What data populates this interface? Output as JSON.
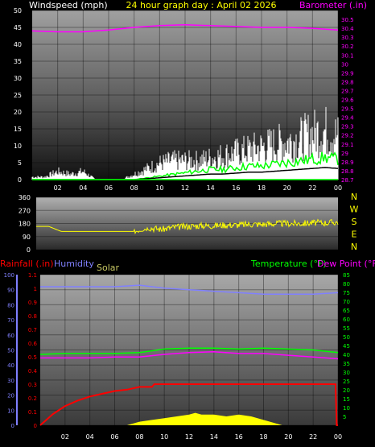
{
  "chart_data": [
    {
      "type": "line",
      "panel": "wind-barometer",
      "title": "24 hour graph day : April 02 2026",
      "left_axis_label": "Windspeed (mph)",
      "right_axis_label": "Barometer (.in)",
      "x_ticks": [
        "02",
        "04",
        "06",
        "08",
        "10",
        "12",
        "14",
        "16",
        "18",
        "20",
        "22",
        "00"
      ],
      "x_tick_hours": [
        2,
        4,
        6,
        8,
        10,
        12,
        14,
        16,
        18,
        20,
        22,
        24
      ],
      "xlim": [
        0,
        24
      ],
      "ylim_left": [
        0,
        50
      ],
      "ylim_right": [
        28.7,
        30.6
      ],
      "left_ticks": [
        "0",
        "5",
        "10",
        "15",
        "20",
        "25",
        "30",
        "35",
        "40",
        "45",
        "50"
      ],
      "right_ticks": [
        "28.7",
        "28.8",
        "28.9",
        "29",
        "29.1",
        "29.2",
        "29.3",
        "29.4",
        "29.5",
        "29.6",
        "29.7",
        "29.8",
        "29.9",
        "30",
        "30.1",
        "30.2",
        "30.3",
        "30.4",
        "30.5"
      ],
      "colors": {
        "title": "#ffff00",
        "left_label": "#ffffff",
        "right_label": "#ff00ff",
        "wind_gust": "#ffffff",
        "wind_avg": "#00ff00",
        "wind_dark": "#000000",
        "barometer": "#ff00ff",
        "x_ticks": "#ffffff",
        "left_ticks": "#ffffff",
        "right_ticks": "#ff00ff"
      },
      "series": [
        {
          "name": "Barometer",
          "axis": "right",
          "x": [
            0,
            2,
            4,
            6,
            8,
            10,
            12,
            14,
            16,
            18,
            20,
            22,
            23,
            24
          ],
          "values": [
            30.37,
            30.36,
            30.36,
            30.38,
            30.41,
            30.43,
            30.44,
            30.43,
            30.42,
            30.41,
            30.41,
            30.4,
            30.39,
            30.38
          ]
        },
        {
          "name": "Wind gust",
          "axis": "left",
          "x": [
            0,
            1,
            2,
            3,
            4,
            5,
            6,
            7,
            8,
            9,
            10,
            11,
            12,
            13,
            14,
            15,
            16,
            17,
            18,
            19,
            20,
            21,
            22,
            23,
            24
          ],
          "values": [
            1,
            1,
            3,
            2,
            3,
            0,
            0,
            0,
            2,
            4,
            6,
            7,
            7,
            7,
            8,
            9,
            10,
            11,
            12,
            13,
            14,
            15,
            17,
            18,
            16
          ]
        },
        {
          "name": "Wind avg",
          "axis": "left",
          "x": [
            0,
            2,
            4,
            6,
            8,
            9,
            10,
            11,
            12,
            13,
            14,
            15,
            16,
            17,
            18,
            19,
            20,
            21,
            22,
            23,
            24
          ],
          "values": [
            0,
            0,
            0,
            0,
            0,
            0.5,
            1,
            1.5,
            2,
            2.5,
            3,
            3,
            3.5,
            4,
            4,
            4.5,
            5,
            5.5,
            6,
            6.5,
            6
          ]
        }
      ]
    },
    {
      "type": "line",
      "panel": "wind-direction",
      "xlim": [
        0,
        24
      ],
      "ylim": [
        0,
        360
      ],
      "ticks": [
        "0",
        "90",
        "180",
        "270",
        "360"
      ],
      "direction_labels": [
        "N",
        "W",
        "S",
        "E",
        "N"
      ],
      "colors": {
        "line": "#ffff00",
        "ticks": "#ffffff",
        "labels": "#ffff00"
      },
      "series": [
        {
          "name": "Wind direction",
          "x": [
            0,
            1,
            2,
            3,
            4,
            5,
            6,
            7,
            7.8,
            8.5,
            9,
            10,
            11,
            12,
            13,
            14,
            15,
            16,
            17,
            18,
            19,
            20,
            21,
            22,
            23,
            24
          ],
          "values": [
            160,
            160,
            125,
            125,
            125,
            125,
            125,
            125,
            125,
            140,
            150,
            140,
            155,
            160,
            165,
            165,
            170,
            170,
            175,
            175,
            180,
            180,
            180,
            185,
            185,
            190
          ]
        }
      ]
    },
    {
      "type": "line",
      "panel": "rain-humidity-solar-temperature",
      "legend": [
        "Rainfall (.in)",
        "Humidity",
        "Solar",
        "Temperature (°F)",
        "Dew Point (°F)"
      ],
      "xlim": [
        0,
        24
      ],
      "ylim_humidity": [
        0,
        100
      ],
      "ylim_rain": [
        0,
        1.1
      ],
      "ylim_temp": [
        0,
        85
      ],
      "humidity_ticks": [
        "0",
        "10",
        "20",
        "30",
        "40",
        "50",
        "60",
        "70",
        "80",
        "90",
        "100"
      ],
      "rain_ticks": [
        "0",
        "0.1",
        "0.2",
        "0.3",
        "0.4",
        "0.5",
        "0.6",
        "0.7",
        "0.8",
        "0.9",
        "1",
        "1.1"
      ],
      "temp_ticks": [
        "5",
        "10",
        "15",
        "20",
        "25",
        "30",
        "35",
        "40",
        "45",
        "50",
        "55",
        "60",
        "65",
        "70",
        "75",
        "80",
        "85"
      ],
      "x_ticks": [
        "02",
        "04",
        "06",
        "08",
        "10",
        "12",
        "14",
        "16",
        "18",
        "20",
        "22",
        "00"
      ],
      "x_tick_hours": [
        2,
        4,
        6,
        8,
        10,
        12,
        14,
        16,
        18,
        20,
        22,
        24
      ],
      "colors": {
        "rain": "#ff0000",
        "humidity": "#8080ff",
        "solar": "#ffff00",
        "temperature": "#00ff00",
        "dewpoint": "#ff00ff",
        "solar_label": "#c8c864",
        "humidity_ticks": "#8080ff",
        "rain_ticks": "#ff0000",
        "temp_ticks": "#00ff00"
      },
      "series": [
        {
          "name": "Humidity",
          "x": [
            0,
            2,
            4,
            6,
            8,
            10,
            12,
            14,
            16,
            18,
            20,
            22,
            24
          ],
          "values": [
            92,
            92,
            92,
            92,
            93,
            91,
            90,
            89,
            88,
            87,
            87,
            87,
            88
          ]
        },
        {
          "name": "Rainfall",
          "x": [
            0,
            0.5,
            1,
            2,
            3,
            4,
            5,
            6,
            7,
            8,
            9,
            9.2,
            10,
            12,
            14,
            16,
            18,
            20,
            22,
            23.8,
            23.9,
            24
          ],
          "values": [
            0,
            0.04,
            0.08,
            0.14,
            0.18,
            0.21,
            0.23,
            0.25,
            0.26,
            0.28,
            0.28,
            0.3,
            0.3,
            0.3,
            0.3,
            0.3,
            0.3,
            0.3,
            0.3,
            0.3,
            0,
            0
          ]
        },
        {
          "name": "Temperature",
          "x": [
            0,
            2,
            4,
            6,
            8,
            10,
            12,
            14,
            16,
            18,
            20,
            22,
            24
          ],
          "values": [
            40,
            40.5,
            40.5,
            40.5,
            41,
            43,
            43.5,
            43.5,
            43,
            43.5,
            43,
            42.5,
            41
          ]
        },
        {
          "name": "Dew Point",
          "x": [
            0,
            2,
            4,
            6,
            8,
            10,
            12,
            14,
            16,
            18,
            20,
            22,
            24
          ],
          "values": [
            38,
            38,
            38,
            38.5,
            38.5,
            40,
            41,
            41.5,
            40.5,
            40.5,
            39.5,
            38.5,
            37.5
          ]
        },
        {
          "name": "Solar",
          "x": [
            7,
            8,
            9,
            10,
            11,
            12,
            12.5,
            13,
            14,
            15,
            16,
            17,
            18,
            19,
            19.5
          ],
          "values": [
            0,
            2,
            3,
            4,
            5,
            6,
            7,
            6,
            6,
            5,
            6,
            5,
            3,
            1,
            0
          ]
        }
      ]
    }
  ]
}
